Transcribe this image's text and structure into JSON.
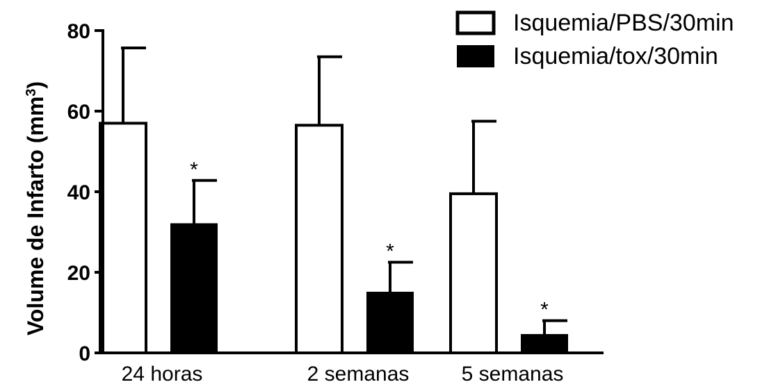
{
  "chart_data": {
    "type": "bar",
    "categories": [
      "24 horas",
      "2 semanas",
      "5 semanas"
    ],
    "series": [
      {
        "name": "Isquemia/PBS/30min",
        "fill": "#ffffff",
        "values": [
          57,
          56.5,
          39.5
        ],
        "error": [
          18.7,
          17,
          18
        ]
      },
      {
        "name": "Isquemia/tox/30min",
        "fill": "#000000",
        "values": [
          32,
          15,
          4.5
        ],
        "error": [
          10.8,
          7.5,
          3.5
        ]
      }
    ],
    "annotations": [
      "*",
      "*",
      "*"
    ],
    "ylabel": "Volume de Infarto (mm",
    "ylabel_sup": "3",
    "ylabel_end": ")",
    "ylim": [
      0,
      80
    ],
    "yticks": [
      "0",
      "20",
      "40",
      "60",
      "80"
    ],
    "ytick_values": [
      0,
      20,
      40,
      60,
      80
    ],
    "legend_position": "top-right",
    "grid": false
  }
}
